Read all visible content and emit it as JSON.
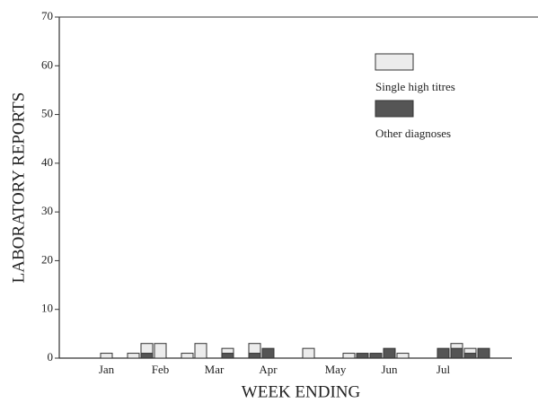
{
  "chart_data": {
    "type": "stacked-bar",
    "y_label": "LABORATORY REPORTS",
    "x_label": "WEEK ENDING",
    "categories": [
      null,
      null,
      null,
      "Jan",
      null,
      null,
      null,
      "Feb",
      null,
      null,
      null,
      "Mar",
      null,
      null,
      null,
      "Apr",
      null,
      null,
      null,
      null,
      "May",
      null,
      null,
      null,
      "Jun",
      null,
      null,
      null,
      "Jul",
      null,
      null,
      null,
      null,
      null,
      null
    ],
    "series": [
      {
        "name": "Other diagnoses",
        "color": "#555555",
        "values": [
          0,
          0,
          0,
          0,
          0,
          0,
          1,
          0,
          0,
          0,
          0,
          0,
          1,
          0,
          1,
          2,
          0,
          0,
          0,
          0,
          0,
          0,
          1,
          1,
          2,
          0,
          0,
          0,
          2,
          2,
          1,
          2,
          0,
          0,
          0
        ]
      },
      {
        "name": "Single high titres",
        "color": "#ececec",
        "values": [
          0,
          0,
          0,
          1,
          0,
          1,
          2,
          3,
          0,
          1,
          3,
          0,
          1,
          0,
          2,
          0,
          0,
          0,
          2,
          0,
          0,
          1,
          0,
          0,
          0,
          1,
          0,
          0,
          0,
          1,
          1,
          0,
          0,
          0,
          0
        ]
      }
    ],
    "legend_order": [
      1,
      0
    ],
    "ylim": [
      0,
      70
    ],
    "yticks": [
      0,
      10,
      20,
      30,
      40,
      50,
      60,
      70
    ]
  }
}
